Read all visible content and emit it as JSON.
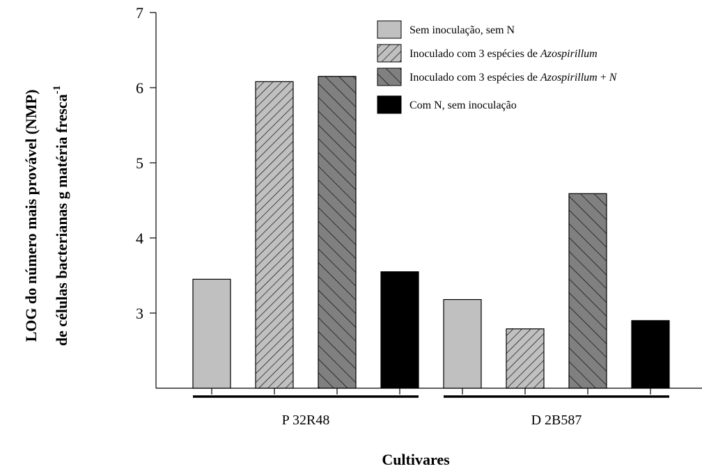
{
  "chart_data": {
    "type": "bar",
    "title": "",
    "xlabel": "Cultivares",
    "ylabel_line1": "LOG do número mais provável (NMP)",
    "ylabel_line2": "de células bacterianas  g matéria fresca",
    "ylabel_superscript": "-1",
    "ylim": [
      2,
      7
    ],
    "yticks": [
      3,
      4,
      5,
      6,
      7
    ],
    "categories": [
      "P 32R48",
      "D 2B587"
    ],
    "series": [
      {
        "name_parts": [
          {
            "text": "Sem inoculação, sem N",
            "italic": false
          }
        ],
        "values": [
          3.45,
          3.18
        ],
        "fill": "#c0c0c0",
        "pattern": "none"
      },
      {
        "name_parts": [
          {
            "text": "Inoculado com 3 espécies de ",
            "italic": false
          },
          {
            "text": "Azospirillum",
            "italic": true
          }
        ],
        "values": [
          6.08,
          2.79
        ],
        "fill": "#c0c0c0",
        "pattern": "forward-hatch"
      },
      {
        "name_parts": [
          {
            "text": "Inoculado com 3 espécies de  ",
            "italic": false
          },
          {
            "text": "Azospirillum",
            "italic": true
          },
          {
            "text": " +  ",
            "italic": false
          },
          {
            "text": "N",
            "italic": true
          }
        ],
        "values": [
          6.15,
          4.59
        ],
        "fill": "#808080",
        "pattern": "back-hatch"
      },
      {
        "name_parts": [
          {
            "text": "Com N, sem inoculação",
            "italic": false
          }
        ],
        "values": [
          3.55,
          2.9
        ],
        "fill": "#000000",
        "pattern": "none"
      }
    ],
    "legend_placement": "top-right",
    "grid": false
  }
}
